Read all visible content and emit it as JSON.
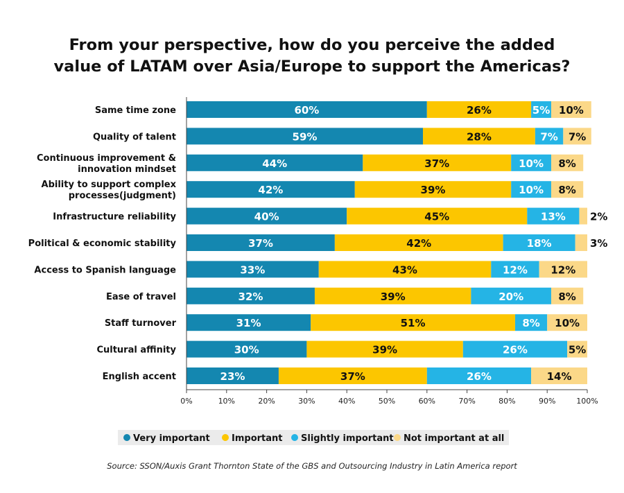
{
  "title": {
    "line1": "From your perspective, how do you perceive the added",
    "line2": "value of LATAM over Asia/Europe to support the Americas?"
  },
  "source": "Source: SSON/Auxis Grant Thornton State of the GBS and Outsourcing Industry in Latin America report",
  "colors": {
    "very_important": "#1487B0",
    "important": "#FCC600",
    "slightly_important": "#25B4E5",
    "not_important": "#FBD888",
    "legend_bg": "#EBEBEB"
  },
  "chart_data": {
    "type": "bar",
    "orientation": "horizontal",
    "stacked": true,
    "categories": [
      [
        "Same time zone"
      ],
      [
        "Quality of talent"
      ],
      [
        "Continuous improvement &",
        "innovation mindset"
      ],
      [
        "Ability to support complex",
        "processes(judgment)"
      ],
      [
        "Infrastructure reliability"
      ],
      [
        "Political & economic stability"
      ],
      [
        "Access to Spanish language"
      ],
      [
        "Ease of travel"
      ],
      [
        "Staff turnover"
      ],
      [
        "Cultural affinity"
      ],
      [
        "English accent"
      ]
    ],
    "series": [
      {
        "name": "Very important",
        "color": "#1487B0",
        "label_color": "#ffffff",
        "values": [
          60,
          59,
          44,
          42,
          40,
          37,
          33,
          32,
          31,
          30,
          23
        ]
      },
      {
        "name": "Important",
        "color": "#FCC600",
        "label_color": "#111111",
        "values": [
          26,
          28,
          37,
          39,
          45,
          42,
          43,
          39,
          51,
          39,
          37
        ]
      },
      {
        "name": "Slightly important",
        "color": "#25B4E5",
        "label_color": "#ffffff",
        "values": [
          5,
          7,
          10,
          10,
          13,
          18,
          12,
          20,
          8,
          26,
          26
        ]
      },
      {
        "name": "Not important at all",
        "color": "#FBD888",
        "label_color": "#111111",
        "values": [
          10,
          7,
          8,
          8,
          2,
          3,
          12,
          8,
          10,
          5,
          14
        ]
      }
    ],
    "x_ticks": [
      "0%",
      "10%",
      "20%",
      "30%",
      "40%",
      "50%",
      "60%",
      "70%",
      "80%",
      "90%",
      "100%"
    ],
    "xlim": [
      0,
      100
    ],
    "grid": false,
    "legend_position": "bottom"
  }
}
